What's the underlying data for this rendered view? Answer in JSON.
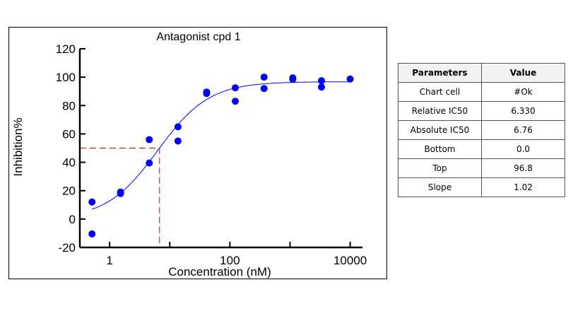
{
  "chart_data": {
    "type": "scatter",
    "title": "Antagonist cpd  1",
    "xlabel": "Concentration (nM)",
    "ylabel": "Inhibition%",
    "x_scale": "log",
    "xlim": [
      0.32,
      16000
    ],
    "ylim": [
      -20,
      120
    ],
    "x_ticks": [
      1,
      10,
      100,
      1000,
      10000
    ],
    "x_tick_labels": [
      "1",
      "",
      "100",
      "",
      "10000"
    ],
    "y_ticks": [
      -20,
      0,
      20,
      40,
      60,
      80,
      100,
      120
    ],
    "y_tick_labels": [
      "-20",
      "0",
      "20",
      "40",
      "60",
      "80",
      "100",
      "120"
    ],
    "grid": false,
    "point_color": "#0000ff",
    "curve_color": "#0000ff",
    "reference_line_color": "#cc0000",
    "points": [
      [
        0.51,
        12
      ],
      [
        0.51,
        -10.5
      ],
      [
        1.52,
        19
      ],
      [
        1.52,
        18
      ],
      [
        4.57,
        56
      ],
      [
        4.57,
        39.5
      ],
      [
        13.7,
        65
      ],
      [
        13.7,
        55
      ],
      [
        41,
        89.5
      ],
      [
        41,
        88.5
      ],
      [
        123,
        92.5
      ],
      [
        123,
        83
      ],
      [
        370,
        100
      ],
      [
        370,
        92
      ],
      [
        1111,
        99.5
      ],
      [
        1111,
        98.5
      ],
      [
        3333,
        97.5
      ],
      [
        3333,
        93
      ],
      [
        10000,
        98.7
      ]
    ],
    "fit": {
      "model": "4PL",
      "bottom": 0.0,
      "top": 96.8,
      "ic50": 6.33,
      "slope": 1.02,
      "x_range": [
        0.51,
        10000
      ]
    },
    "reference_line": {
      "x": 6.76,
      "y": 50
    }
  },
  "table": {
    "headers": [
      "Parameters",
      "Value"
    ],
    "rows": [
      [
        "Chart cell",
        "#Ok"
      ],
      [
        "Relative IC50",
        "6.330"
      ],
      [
        "Absolute IC50",
        "6.76"
      ],
      [
        "Bottom",
        "0.0"
      ],
      [
        "Top",
        "96.8"
      ],
      [
        "Slope",
        "1.02"
      ]
    ]
  }
}
